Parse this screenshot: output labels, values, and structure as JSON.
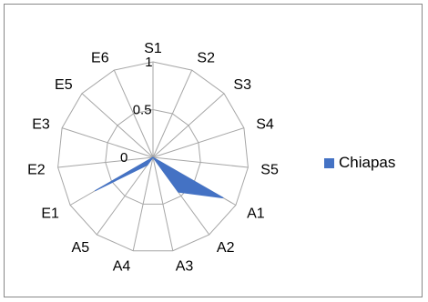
{
  "chart_data": {
    "type": "radar",
    "title": "",
    "categories": [
      "S1",
      "S2",
      "S3",
      "S4",
      "S5",
      "A1",
      "A2",
      "A3",
      "A4",
      "A5",
      "E1",
      "E2",
      "E3",
      "E5",
      "E6"
    ],
    "rticks": [
      "0",
      "0.5",
      "1"
    ],
    "rlim": [
      0,
      1
    ],
    "grid": true,
    "legend_position": "right",
    "series": [
      {
        "name": "Chiapas",
        "color": "#4472C4",
        "values": [
          0,
          0,
          0,
          0,
          0,
          0.85,
          0.45,
          0,
          0,
          0.1,
          0.7,
          0,
          0,
          0,
          0
        ]
      }
    ]
  }
}
